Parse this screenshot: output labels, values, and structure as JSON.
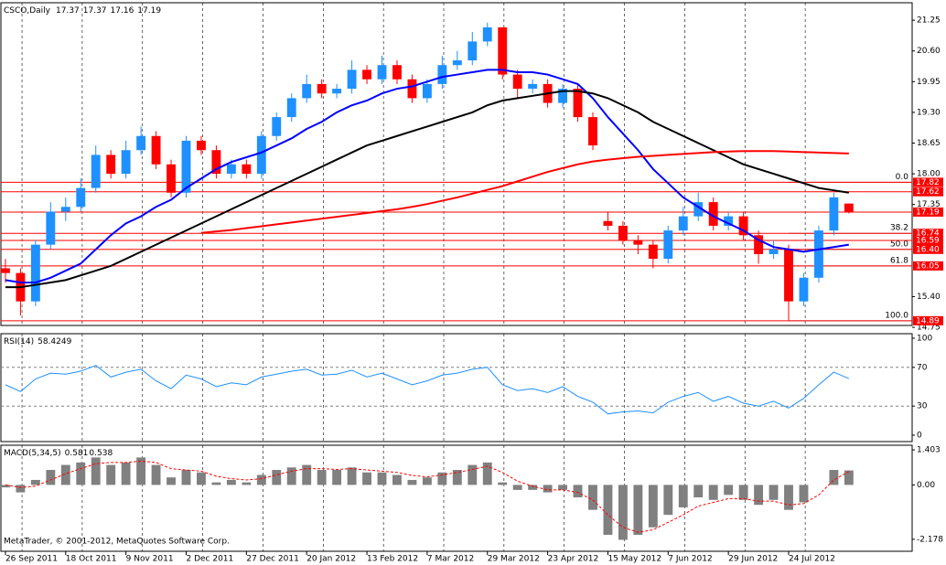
{
  "chart_data": [
    {
      "type": "candlestick",
      "title": "CSCO,Daily",
      "open": [
        16.0,
        15.9,
        15.3,
        16.5,
        17.2,
        17.3,
        17.7,
        18.4,
        18.0,
        18.5,
        18.8,
        18.2,
        17.6,
        18.7,
        18.5,
        18.0,
        18.2,
        18.0,
        18.8,
        19.2,
        19.6,
        19.9,
        19.7,
        19.8,
        20.2,
        20.0,
        20.3,
        20.0,
        19.6,
        19.9,
        20.3,
        20.4,
        20.8,
        21.1,
        20.1,
        19.8,
        19.9,
        19.5,
        19.8,
        19.2,
        17.0,
        16.9,
        16.6,
        16.5,
        16.2,
        16.8,
        17.1,
        17.4,
        16.9,
        17.1,
        16.7,
        16.3,
        16.4,
        15.3,
        15.8,
        16.8,
        17.37
      ],
      "high": [
        16.2,
        16.0,
        16.6,
        17.4,
        17.5,
        17.9,
        18.6,
        18.5,
        18.7,
        19.0,
        18.9,
        18.3,
        18.8,
        18.8,
        18.6,
        18.3,
        18.3,
        18.9,
        19.3,
        19.7,
        20.1,
        20.0,
        19.9,
        20.4,
        20.3,
        20.5,
        20.4,
        20.1,
        20.0,
        20.5,
        20.6,
        21.0,
        21.2,
        21.1,
        20.2,
        20.0,
        20.0,
        19.9,
        19.9,
        19.3,
        17.2,
        17.0,
        16.7,
        16.6,
        16.9,
        17.3,
        17.6,
        17.5,
        17.2,
        17.2,
        16.8,
        16.6,
        16.5,
        15.9,
        16.9,
        17.6,
        17.37
      ],
      "low": [
        15.7,
        15.0,
        15.2,
        16.4,
        17.0,
        17.2,
        17.6,
        17.9,
        17.9,
        18.4,
        18.1,
        17.5,
        17.5,
        18.4,
        17.9,
        17.9,
        17.9,
        17.9,
        18.7,
        19.1,
        19.5,
        19.6,
        19.6,
        19.7,
        19.9,
        19.9,
        19.9,
        19.5,
        19.5,
        19.8,
        20.2,
        20.3,
        20.7,
        20.0,
        19.6,
        19.7,
        19.4,
        19.4,
        19.1,
        18.5,
        16.8,
        16.5,
        16.3,
        16.0,
        16.1,
        16.7,
        17.0,
        16.8,
        16.8,
        16.6,
        16.1,
        16.2,
        14.9,
        15.2,
        15.7,
        16.7,
        17.16
      ],
      "close": [
        15.9,
        15.3,
        16.5,
        17.2,
        17.3,
        17.7,
        18.4,
        18.0,
        18.5,
        18.8,
        18.2,
        17.6,
        18.7,
        18.5,
        18.0,
        18.2,
        18.0,
        18.8,
        19.2,
        19.6,
        19.9,
        19.7,
        19.8,
        20.2,
        20.0,
        20.3,
        20.0,
        19.6,
        19.9,
        20.3,
        20.4,
        20.8,
        21.1,
        20.1,
        19.8,
        19.9,
        19.5,
        19.8,
        19.2,
        18.6,
        16.9,
        16.6,
        16.5,
        16.2,
        16.8,
        17.1,
        17.4,
        16.9,
        17.1,
        16.7,
        16.3,
        16.4,
        15.3,
        15.8,
        16.8,
        17.5,
        17.19
      ],
      "colors": {
        "up": "#1e90ff",
        "down": "#ff0000"
      },
      "overlays": [
        {
          "color": "#0000ff",
          "values": [
            15.75,
            15.7,
            15.7,
            15.8,
            15.95,
            16.1,
            16.4,
            16.7,
            16.95,
            17.1,
            17.3,
            17.45,
            17.7,
            17.9,
            18.1,
            18.25,
            18.35,
            18.45,
            18.6,
            18.75,
            18.95,
            19.1,
            19.3,
            19.45,
            19.55,
            19.7,
            19.8,
            19.85,
            19.95,
            20.05,
            20.1,
            20.15,
            20.2,
            20.2,
            20.15,
            20.15,
            20.1,
            20.0,
            19.9,
            19.6,
            19.2,
            18.85,
            18.5,
            18.1,
            17.8,
            17.5,
            17.3,
            17.1,
            16.95,
            16.8,
            16.6,
            16.45,
            16.4,
            16.35,
            16.4,
            16.45,
            16.5
          ]
        },
        {
          "color": "#000000",
          "values": [
            15.6,
            15.6,
            15.65,
            15.7,
            15.75,
            15.85,
            15.95,
            16.05,
            16.2,
            16.35,
            16.5,
            16.65,
            16.8,
            16.95,
            17.1,
            17.25,
            17.4,
            17.55,
            17.7,
            17.85,
            18.0,
            18.15,
            18.3,
            18.45,
            18.6,
            18.7,
            18.8,
            18.9,
            19.0,
            19.1,
            19.2,
            19.3,
            19.45,
            19.55,
            19.6,
            19.65,
            19.7,
            19.75,
            19.75,
            19.7,
            19.6,
            19.45,
            19.3,
            19.1,
            18.95,
            18.8,
            18.65,
            18.5,
            18.35,
            18.2,
            18.1,
            18.0,
            17.9,
            17.8,
            17.7,
            17.65,
            17.6
          ]
        },
        {
          "color": "#ff0000",
          "values": [
            null,
            null,
            null,
            null,
            null,
            null,
            null,
            null,
            null,
            null,
            null,
            null,
            null,
            16.75,
            16.78,
            16.81,
            16.85,
            16.89,
            16.93,
            16.97,
            17.01,
            17.05,
            17.09,
            17.13,
            17.17,
            17.21,
            17.25,
            17.3,
            17.36,
            17.43,
            17.5,
            17.58,
            17.66,
            17.74,
            17.84,
            17.94,
            18.04,
            18.12,
            18.2,
            18.26,
            18.3,
            18.33,
            18.36,
            18.38,
            18.4,
            18.42,
            18.44,
            18.46,
            18.47,
            18.48,
            18.48,
            18.48,
            18.47,
            18.46,
            18.45,
            18.44,
            18.43
          ]
        }
      ],
      "levels": [
        17.82,
        17.62,
        17.19,
        16.74,
        16.59,
        {
          "value": 16.4,
          "label": "16.40"
        },
        16.05,
        14.89
      ],
      "level_color": "#ff0000",
      "fibo": {
        "levels": [
          {
            "value": 0,
            "label": "0.0"
          },
          38.2,
          {
            "value": 50,
            "label": "50.0"
          },
          61.8,
          {
            "value": 100,
            "label": "100.0"
          }
        ],
        "prices": [
          17.82,
          16.74,
          16.4,
          16.05,
          14.89
        ]
      },
      "xlim": [
        -0.3,
        60.2
      ],
      "xticks": [
        {
          "value": 0,
          "label": "26 Sep 2011"
        },
        {
          "value": 4,
          "label": "18 Oct 2011"
        },
        {
          "value": 8,
          "label": "9 Nov 2011"
        },
        {
          "value": 12,
          "label": "2 Dec 2011"
        },
        {
          "value": 16,
          "label": "27 Dec 2011"
        },
        {
          "value": 20,
          "label": "20 Jan 2012"
        },
        {
          "value": 24,
          "label": "13 Feb 2012"
        },
        {
          "value": 28,
          "label": "7 Mar 2012"
        },
        {
          "value": 32,
          "label": "29 Mar 2012"
        },
        {
          "value": 36,
          "label": "23 Apr 2012"
        },
        {
          "value": 40,
          "label": "15 May 2012"
        },
        {
          "value": 44,
          "label": "7 Jun 2012"
        },
        {
          "value": 48,
          "label": "29 Jun 2012"
        },
        {
          "value": 52,
          "label": "24 Jul 2012"
        }
      ],
      "grid": true,
      "ylim": [
        14.79,
        21.62
      ],
      "yticks": [
        21.25,
        {
          "value": 20.6,
          "label": "20.60"
        },
        19.95,
        {
          "value": 19.3,
          "label": "19.30"
        },
        18.65,
        {
          "value": 18.0,
          "label": "18.00"
        },
        17.35,
        {
          "value": 15.4,
          "label": "15.40"
        },
        14.75
      ]
    },
    {
      "type": "line",
      "title": "RSI(14)",
      "color": "#1e90ff",
      "values": [
        52,
        45,
        58,
        64,
        63,
        66,
        72,
        60,
        65,
        68,
        56,
        48,
        62,
        58,
        50,
        54,
        52,
        60,
        63,
        66,
        68,
        62,
        63,
        67,
        60,
        64,
        58,
        52,
        56,
        62,
        64,
        68,
        70,
        52,
        46,
        48,
        44,
        50,
        40,
        34,
        22,
        24,
        25,
        23,
        34,
        40,
        44,
        35,
        40,
        33,
        30,
        35,
        28,
        38,
        52,
        65,
        58.4249
      ],
      "ylim": [
        -6.6,
        104.7
      ],
      "yticks": [
        100,
        70,
        30,
        0
      ],
      "levels": [
        70,
        30
      ]
    },
    {
      "type": "macd",
      "title": "MACD(5,34,5)",
      "color": "#808080",
      "signal_color": "#ff0000",
      "values": [
        -0.1,
        -0.3,
        0.2,
        0.6,
        0.8,
        0.9,
        1.1,
        0.8,
        0.9,
        1.1,
        0.8,
        0.3,
        0.6,
        0.5,
        0.1,
        0.2,
        0.1,
        0.4,
        0.6,
        0.7,
        0.8,
        0.6,
        0.6,
        0.7,
        0.5,
        0.5,
        0.4,
        0.2,
        0.3,
        0.5,
        0.6,
        0.8,
        0.9,
        0.1,
        -0.2,
        -0.2,
        -0.3,
        -0.2,
        -0.5,
        -1.0,
        -2.0,
        -2.2,
        -2.0,
        -1.7,
        -1.2,
        -0.9,
        -0.5,
        -0.6,
        -0.4,
        -0.6,
        -0.8,
        -0.6,
        -1.0,
        -0.7,
        0.0,
        0.6,
        0.581
      ],
      "signal": [
        0.0,
        -0.1,
        -0.05,
        0.2,
        0.45,
        0.65,
        0.85,
        0.9,
        0.9,
        0.95,
        0.9,
        0.65,
        0.6,
        0.55,
        0.35,
        0.25,
        0.2,
        0.25,
        0.4,
        0.55,
        0.65,
        0.65,
        0.62,
        0.65,
        0.6,
        0.55,
        0.5,
        0.38,
        0.32,
        0.4,
        0.5,
        0.62,
        0.75,
        0.5,
        0.15,
        -0.05,
        -0.2,
        -0.2,
        -0.3,
        -0.6,
        -1.2,
        -1.7,
        -1.9,
        -1.8,
        -1.5,
        -1.2,
        -0.85,
        -0.7,
        -0.55,
        -0.55,
        -0.65,
        -0.65,
        -0.8,
        -0.75,
        -0.4,
        0.2,
        0.538
      ],
      "ylim": [
        -2.66,
        1.59
      ],
      "yticks": [
        1.403,
        {
          "value": 0,
          "label": "0.00"
        },
        -2.178
      ]
    }
  ],
  "footer": "MetaTrader, © 2001-2012, MetaQuotes Software Corp."
}
